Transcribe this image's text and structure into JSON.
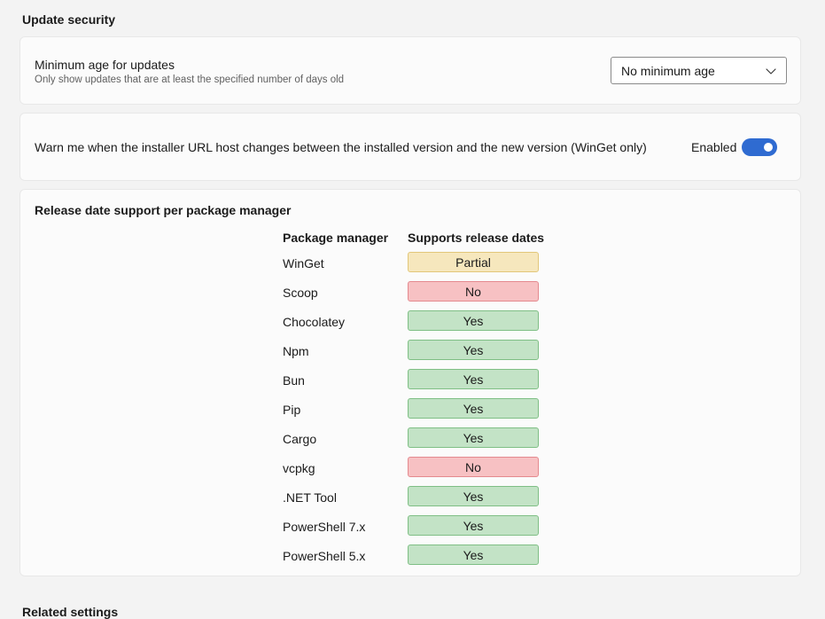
{
  "section": {
    "title": "Update security"
  },
  "min_age": {
    "title": "Minimum age for updates",
    "description": "Only show updates that are at least the specified number of days old",
    "selected": "No minimum age",
    "icon": "chevron-down-icon"
  },
  "url_host": {
    "label": "Warn me when the installer URL host changes between the installed version and the new version (WinGet only)",
    "toggle_state": "Enabled",
    "toggle_on": true,
    "accent": "#2f6bd1"
  },
  "release_support": {
    "title": "Release date support per package manager",
    "headers": {
      "package_manager": "Package manager",
      "supports": "Supports release dates"
    },
    "colors": {
      "yes": "#c3e3c6",
      "no": "#f7c1c3",
      "partial": "#f6e7bd"
    },
    "rows": [
      {
        "name": "WinGet",
        "status": "Partial",
        "kind": "partial"
      },
      {
        "name": "Scoop",
        "status": "No",
        "kind": "no"
      },
      {
        "name": "Chocolatey",
        "status": "Yes",
        "kind": "yes"
      },
      {
        "name": "Npm",
        "status": "Yes",
        "kind": "yes"
      },
      {
        "name": "Bun",
        "status": "Yes",
        "kind": "yes"
      },
      {
        "name": "Pip",
        "status": "Yes",
        "kind": "yes"
      },
      {
        "name": "Cargo",
        "status": "Yes",
        "kind": "yes"
      },
      {
        "name": "vcpkg",
        "status": "No",
        "kind": "no"
      },
      {
        "name": ".NET Tool",
        "status": "Yes",
        "kind": "yes"
      },
      {
        "name": "PowerShell 7.x",
        "status": "Yes",
        "kind": "yes"
      },
      {
        "name": "PowerShell 5.x",
        "status": "Yes",
        "kind": "yes"
      }
    ]
  },
  "next_section": {
    "title": "Related settings"
  }
}
